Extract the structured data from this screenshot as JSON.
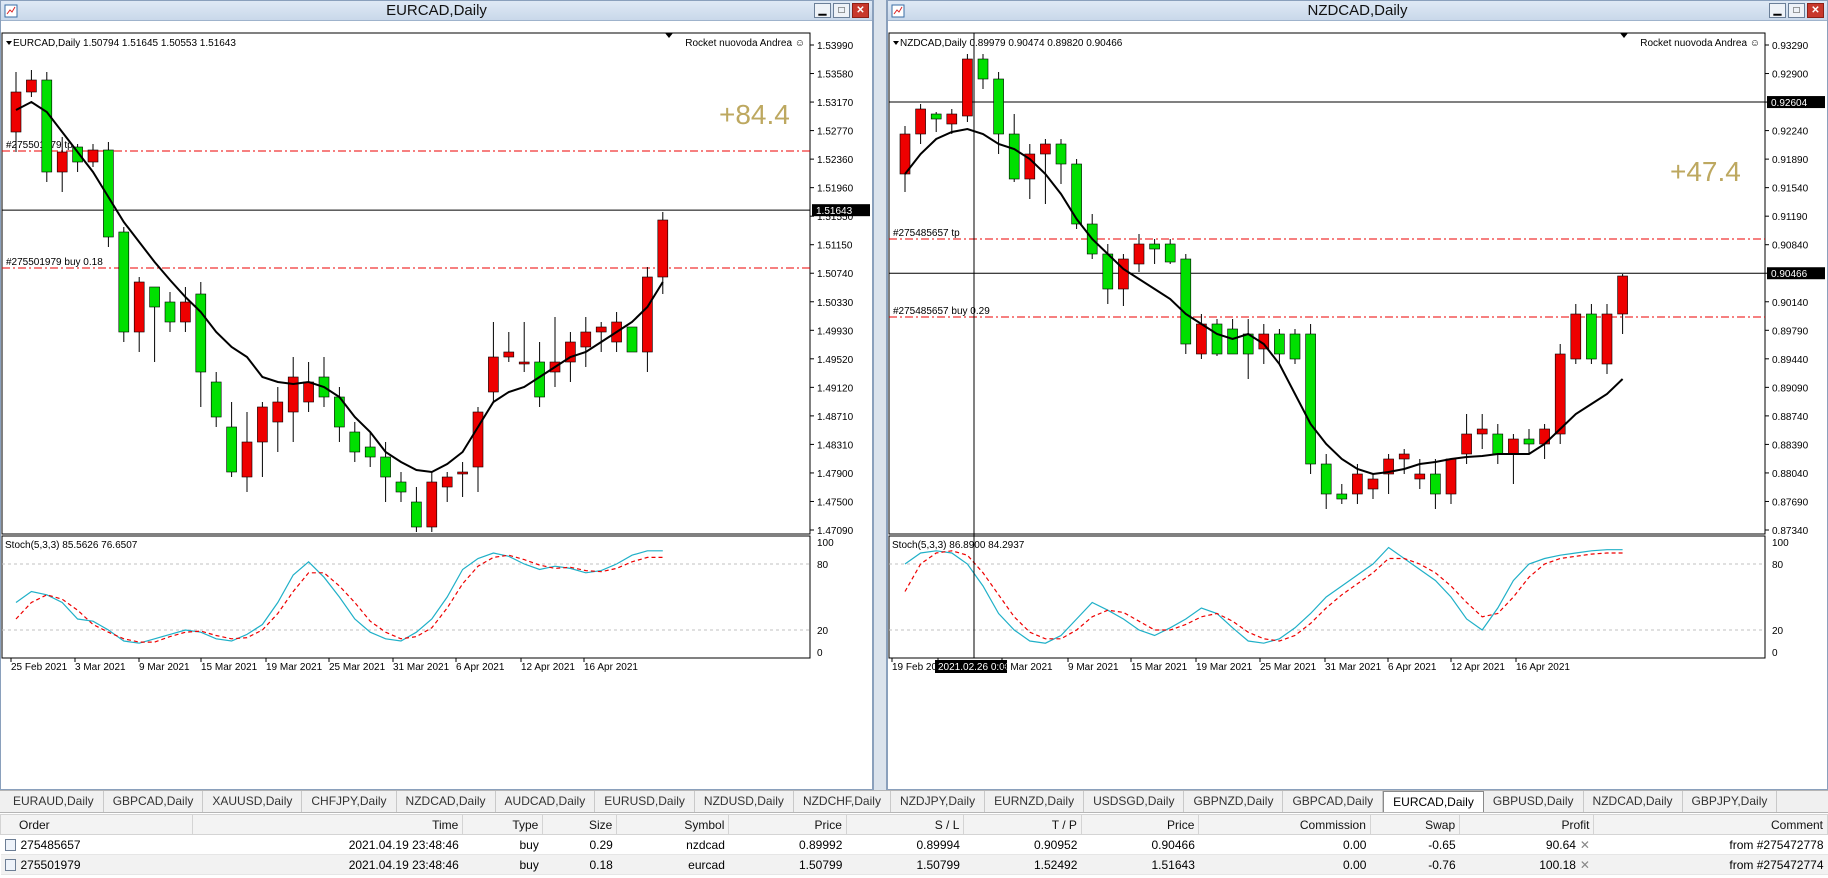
{
  "left": {
    "title": "EURCAD,Daily",
    "info": "EURCAD,Daily  1.50794 1.51645 1.50553 1.51643",
    "ea": "Rocket nuovoda Andrea",
    "profit_label": "+84.4",
    "prices": [
      "1.53990",
      "1.53580",
      "1.53170",
      "1.52770",
      "1.52360",
      "1.51960",
      "1.51550",
      "1.51150",
      "1.50740",
      "1.50330",
      "1.49930",
      "1.49520",
      "1.49120",
      "1.48710",
      "1.48310",
      "1.47900",
      "1.47500",
      "1.47090"
    ],
    "current": "1.51643",
    "tp_label": "#275501979 tp",
    "buy_label": "#275501979 buy 0.18",
    "stoch": "Stoch(5,3,3) 85.5626 76.6507",
    "stoch_levels": [
      "100",
      "80",
      "20",
      "0"
    ],
    "dates": [
      "25 Feb 2021",
      "3 Mar 2021",
      "9 Mar 2021",
      "15 Mar 2021",
      "19 Mar 2021",
      "25 Mar 2021",
      "31 Mar 2021",
      "6 Apr 2021",
      "12 Apr 2021",
      "16 Apr 2021"
    ]
  },
  "right": {
    "title": "NZDCAD,Daily",
    "info": "NZDCAD,Daily  0.89979 0.90474 0.89820 0.90466",
    "ea": "Rocket nuovoda Andrea",
    "profit_label": "+47.4",
    "prices": [
      "0.93290",
      "0.92900",
      "0.92604",
      "0.92240",
      "0.91890",
      "0.91540",
      "0.91190",
      "0.90840",
      "0.90466",
      "0.90140",
      "0.89790",
      "0.89440",
      "0.89090",
      "0.88740",
      "0.88390",
      "0.88040",
      "0.87690",
      "0.87340"
    ],
    "current": "0.90466",
    "upper_line": "0.92604",
    "tp_label": "#275485657 tp",
    "buy_label": "#275485657 buy 0.29",
    "stoch": "Stoch(5,3,3) 86.8900 84.2937",
    "stoch_levels": [
      "100",
      "80",
      "20",
      "0"
    ],
    "dates": [
      "19 Feb 2021",
      "2021.02.26 0:00",
      "3 Mar 2021",
      "9 Mar 2021",
      "15 Mar 2021",
      "19 Mar 2021",
      "25 Mar 2021",
      "31 Mar 2021",
      "6 Apr 2021",
      "12 Apr 2021",
      "16 Apr 2021"
    ]
  },
  "tabs": [
    "EURAUD,Daily",
    "GBPCAD,Daily",
    "XAUUSD,Daily",
    "CHFJPY,Daily",
    "NZDCAD,Daily",
    "AUDCAD,Daily",
    "EURUSD,Daily",
    "NZDUSD,Daily",
    "NZDCHF,Daily",
    "NZDJPY,Daily",
    "EURNZD,Daily",
    "USDSGD,Daily",
    "GBPNZD,Daily",
    "GBPCAD,Daily",
    "EURCAD,Daily",
    "GBPUSD,Daily",
    "NZDCAD,Daily",
    "GBPJPY,Daily"
  ],
  "active_tab": 14,
  "terminal": {
    "headers": [
      "Order",
      "Time",
      "Type",
      "Size",
      "Symbol",
      "Price",
      "S / L",
      "T / P",
      "Price",
      "Commission",
      "Swap",
      "Profit",
      "Comment"
    ],
    "rows": [
      [
        "275485657",
        "2021.04.19 23:48:46",
        "buy",
        "0.29",
        "nzdcad",
        "0.89992",
        "0.89994",
        "0.90952",
        "0.90466",
        "0.00",
        "-0.65",
        "90.64",
        "from #275472778"
      ],
      [
        "275501979",
        "2021.04.19 23:48:46",
        "buy",
        "0.18",
        "eurcad",
        "1.50799",
        "1.50799",
        "1.52492",
        "1.51643",
        "0.00",
        "-0.76",
        "100.18",
        "from #275472774"
      ]
    ]
  },
  "colors": {
    "bull": "#00e000",
    "bear": "#ee0000",
    "ma": "#000000",
    "stoch_main": "#20b0c8",
    "stoch_signal": "#ee0000",
    "level_line": "#ee0000",
    "profit": "#bda860"
  }
}
